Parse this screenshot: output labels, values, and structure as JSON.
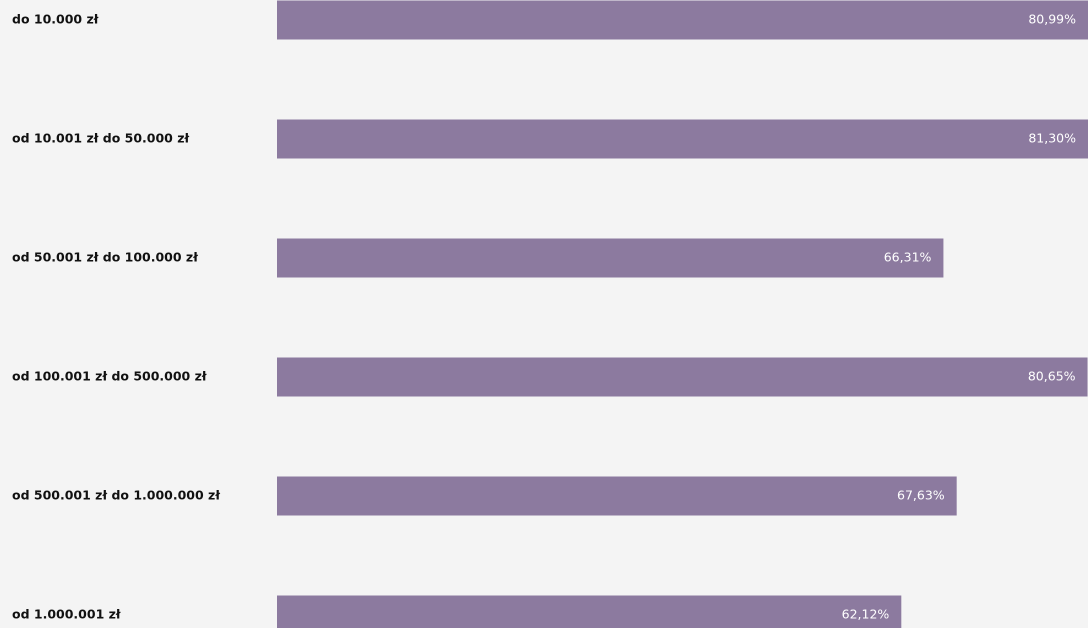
{
  "chart_data": {
    "type": "bar",
    "orientation": "horizontal",
    "categories": [
      "do 10.000 zł",
      "od 10.001 zł do 50.000 zł",
      "od 50.001 zł do 100.000 zł",
      "od 100.001 zł do 500.000 zł",
      "od 500.001 zł do 1.000.000 zł",
      "od 1.000.001 zł"
    ],
    "values": [
      80.99,
      81.3,
      66.31,
      80.65,
      67.63,
      62.12
    ],
    "value_labels": [
      "80,99%",
      "81,30%",
      "66,31%",
      "80,65%",
      "67,63%",
      "62,12%"
    ],
    "color": "#8c7a9f"
  }
}
